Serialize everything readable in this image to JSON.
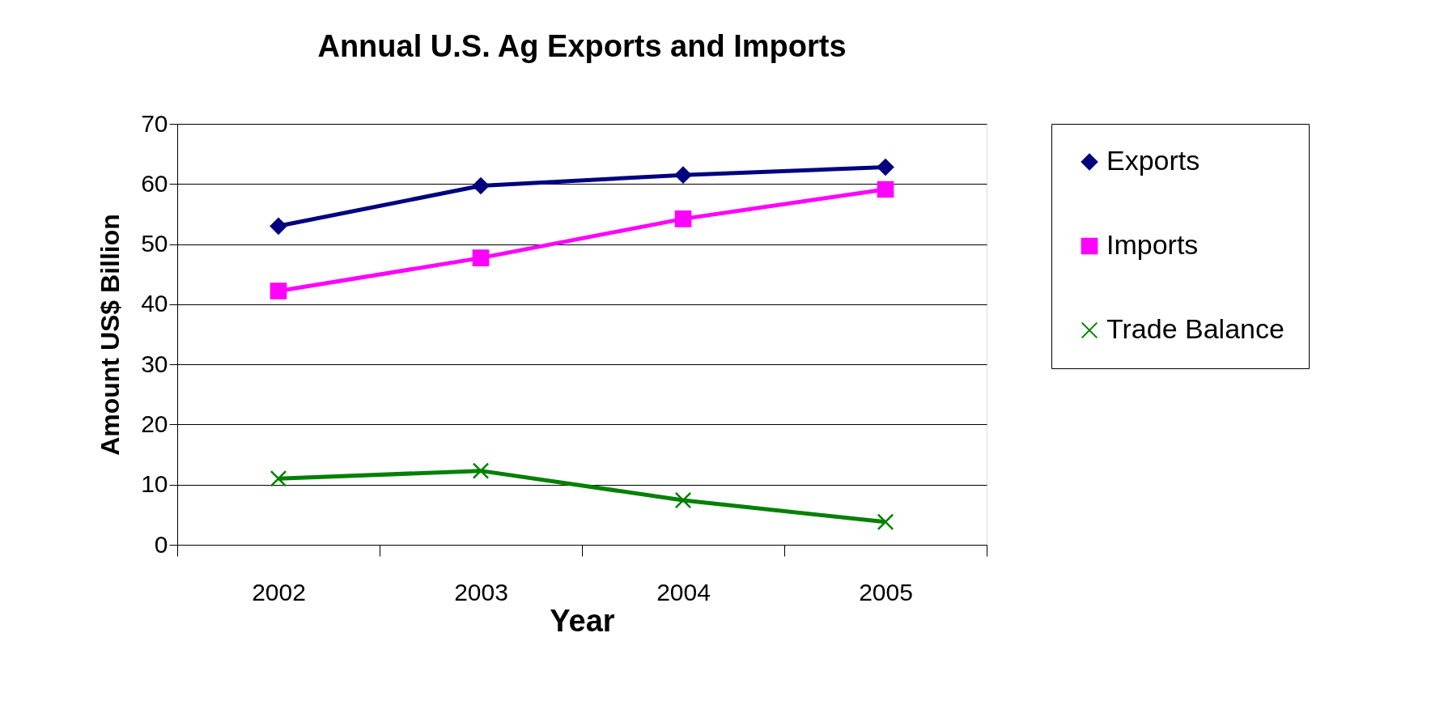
{
  "chart_data": {
    "type": "line",
    "title": "Annual U.S. Ag Exports and Imports",
    "xlabel": "Year",
    "ylabel": "Amount US$ Billion",
    "categories": [
      "2002",
      "2003",
      "2004",
      "2005"
    ],
    "series": [
      {
        "name": "Exports",
        "color": "#000080",
        "marker": "diamond",
        "values": [
          53.0,
          59.7,
          61.5,
          62.8
        ]
      },
      {
        "name": "Imports",
        "color": "#ff00ff",
        "marker": "square",
        "values": [
          42.2,
          47.7,
          54.2,
          59.1
        ]
      },
      {
        "name": "Trade Balance",
        "color": "#008000",
        "marker": "cross",
        "values": [
          11.0,
          12.3,
          7.4,
          3.8
        ]
      }
    ],
    "ylim": [
      0,
      70
    ],
    "yticks": [
      0,
      10,
      20,
      30,
      40,
      50,
      60,
      70
    ],
    "grid": "y",
    "legend": "right",
    "line_style": "solid"
  }
}
